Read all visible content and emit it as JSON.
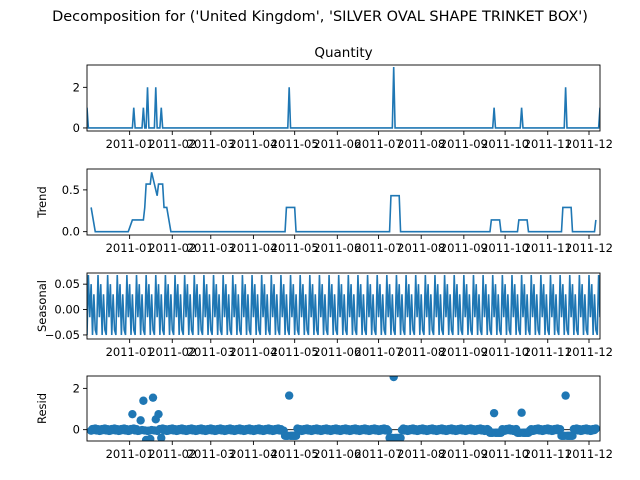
{
  "figure_title": "Decomposition for ('United Kingdom', 'SILVER OVAL SHAPE TRINKET BOX')",
  "colors": {
    "line": "#1f77b4",
    "axis": "#000000",
    "background": "#ffffff"
  },
  "x_tick_labels": [
    "2011-01",
    "2011-02",
    "2011-03",
    "2011-04",
    "2011-05",
    "2011-06",
    "2011-07",
    "2011-08",
    "2011-09",
    "2011-10",
    "2011-11",
    "2011-12"
  ],
  "chart_data": [
    {
      "type": "line",
      "title": "Quantity",
      "ylabel": "",
      "x_range": [
        "2010-12-01",
        "2011-12-09"
      ],
      "ylim": [
        -0.15,
        3.1
      ],
      "yticks": [
        0,
        2
      ],
      "grid": false,
      "baseline": 0,
      "spikes": [
        {
          "x": "2010-12-01",
          "y": 1
        },
        {
          "x": "2011-01-04",
          "y": 1
        },
        {
          "x": "2011-01-11",
          "y": 1
        },
        {
          "x": "2011-01-14",
          "y": 2
        },
        {
          "x": "2011-01-20",
          "y": 2
        },
        {
          "x": "2011-01-24",
          "y": 1
        },
        {
          "x": "2011-04-27",
          "y": 2
        },
        {
          "x": "2011-07-12",
          "y": 3
        },
        {
          "x": "2011-09-23",
          "y": 1
        },
        {
          "x": "2011-10-13",
          "y": 1
        },
        {
          "x": "2011-11-14",
          "y": 2
        },
        {
          "x": "2011-12-09",
          "y": 1
        }
      ]
    },
    {
      "type": "line",
      "title": "",
      "ylabel": "Trend",
      "ylim": [
        -0.04,
        0.75
      ],
      "yticks": [
        0.0,
        0.5
      ],
      "ytick_labels": [
        "0.0",
        "0.5"
      ],
      "grid": false,
      "points": [
        {
          "x": "2010-12-04",
          "y": 0.29
        },
        {
          "x": "2010-12-07",
          "y": 0.0
        },
        {
          "x": "2010-12-31",
          "y": 0.0
        },
        {
          "x": "2011-01-03",
          "y": 0.14
        },
        {
          "x": "2011-01-11",
          "y": 0.14
        },
        {
          "x": "2011-01-12",
          "y": 0.29
        },
        {
          "x": "2011-01-13",
          "y": 0.57
        },
        {
          "x": "2011-01-16",
          "y": 0.57
        },
        {
          "x": "2011-01-17",
          "y": 0.71
        },
        {
          "x": "2011-01-19",
          "y": 0.57
        },
        {
          "x": "2011-01-21",
          "y": 0.43
        },
        {
          "x": "2011-01-22",
          "y": 0.57
        },
        {
          "x": "2011-01-25",
          "y": 0.57
        },
        {
          "x": "2011-01-26",
          "y": 0.29
        },
        {
          "x": "2011-01-28",
          "y": 0.29
        },
        {
          "x": "2011-01-31",
          "y": 0.0
        },
        {
          "x": "2011-04-24",
          "y": 0.0
        },
        {
          "x": "2011-04-25",
          "y": 0.29
        },
        {
          "x": "2011-05-01",
          "y": 0.29
        },
        {
          "x": "2011-05-02",
          "y": 0.0
        },
        {
          "x": "2011-07-09",
          "y": 0.0
        },
        {
          "x": "2011-07-10",
          "y": 0.43
        },
        {
          "x": "2011-07-16",
          "y": 0.43
        },
        {
          "x": "2011-07-17",
          "y": 0.0
        },
        {
          "x": "2011-09-20",
          "y": 0.0
        },
        {
          "x": "2011-09-21",
          "y": 0.14
        },
        {
          "x": "2011-09-27",
          "y": 0.14
        },
        {
          "x": "2011-09-28",
          "y": 0.0
        },
        {
          "x": "2011-10-10",
          "y": 0.0
        },
        {
          "x": "2011-10-11",
          "y": 0.14
        },
        {
          "x": "2011-10-17",
          "y": 0.14
        },
        {
          "x": "2011-10-18",
          "y": 0.0
        },
        {
          "x": "2011-11-11",
          "y": 0.0
        },
        {
          "x": "2011-11-12",
          "y": 0.29
        },
        {
          "x": "2011-11-18",
          "y": 0.29
        },
        {
          "x": "2011-11-19",
          "y": 0.0
        },
        {
          "x": "2011-12-05",
          "y": 0.0
        },
        {
          "x": "2011-12-06",
          "y": 0.14
        }
      ]
    },
    {
      "type": "line",
      "title": "",
      "ylabel": "Seasonal",
      "ylim": [
        -0.058,
        0.072
      ],
      "yticks": [
        -0.05,
        0.0,
        0.05
      ],
      "ytick_labels": [
        "−0.05",
        "0.00",
        "0.05"
      ],
      "grid": false,
      "period_days": 7,
      "pattern": [
        -0.05,
        0.068,
        -0.015,
        0.05,
        -0.05,
        0.03,
        -0.04
      ],
      "start": "2010-12-01",
      "end": "2011-12-09"
    },
    {
      "type": "scatter",
      "title": "",
      "ylabel": "Resid",
      "ylim": [
        -0.55,
        2.6
      ],
      "yticks": [
        0,
        2
      ],
      "grid": false,
      "zero_line": true,
      "outliers": [
        {
          "x": "2011-01-03",
          "y": 0.75
        },
        {
          "x": "2011-01-09",
          "y": 0.45
        },
        {
          "x": "2011-01-11",
          "y": 1.4
        },
        {
          "x": "2011-01-13",
          "y": -0.5
        },
        {
          "x": "2011-01-16",
          "y": -0.45
        },
        {
          "x": "2011-01-18",
          "y": 1.55
        },
        {
          "x": "2011-01-20",
          "y": 0.5
        },
        {
          "x": "2011-01-22",
          "y": 0.75
        },
        {
          "x": "2011-01-24",
          "y": -0.4
        },
        {
          "x": "2011-04-27",
          "y": 1.65
        },
        {
          "x": "2011-07-12",
          "y": 2.55
        },
        {
          "x": "2011-09-23",
          "y": 0.8
        },
        {
          "x": "2011-10-13",
          "y": 0.82
        },
        {
          "x": "2011-11-14",
          "y": 1.65
        }
      ],
      "dips": [
        {
          "from": "2011-04-24",
          "to": "2011-05-02",
          "y": -0.3
        },
        {
          "from": "2011-07-09",
          "to": "2011-07-17",
          "y": -0.4
        },
        {
          "from": "2011-09-20",
          "to": "2011-09-28",
          "y": -0.15
        },
        {
          "from": "2011-10-10",
          "to": "2011-10-18",
          "y": -0.15
        },
        {
          "from": "2011-11-11",
          "to": "2011-11-19",
          "y": -0.3
        }
      ],
      "start": "2010-12-04",
      "end": "2011-12-06"
    }
  ]
}
